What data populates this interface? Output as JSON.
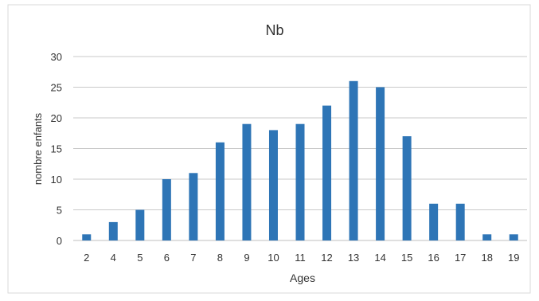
{
  "chart_data": {
    "type": "bar",
    "title": "Nb",
    "xlabel": "Ages",
    "ylabel": "nombre enfants",
    "categories": [
      "2",
      "4",
      "5",
      "6",
      "7",
      "8",
      "9",
      "10",
      "11",
      "12",
      "13",
      "14",
      "15",
      "16",
      "17",
      "18",
      "19"
    ],
    "values": [
      1,
      3,
      5,
      10,
      11,
      16,
      19,
      18,
      19,
      22,
      26,
      25,
      17,
      6,
      6,
      1,
      1
    ],
    "ylim": [
      0,
      30
    ],
    "yticks": [
      "0",
      "5",
      "10",
      "15",
      "20",
      "25",
      "30"
    ],
    "grid": true,
    "legend": "none",
    "colors": {
      "bar": "#2e75b6",
      "grid": "#c9c9c9",
      "axis": "#bfbfbf"
    }
  }
}
